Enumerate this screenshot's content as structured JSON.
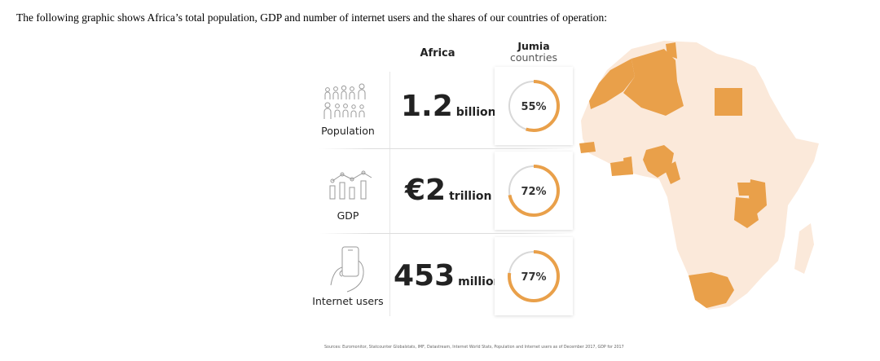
{
  "intro_text": "The following graphic shows Africa’s total population, GDP and number of internet users and the shares of our countries of operation:",
  "columns": {
    "africa": "Africa",
    "jumia_title": "Jumia",
    "jumia_subtitle": "countries"
  },
  "rows": [
    {
      "label": "Population",
      "icon": "people-icon",
      "value": "1.2",
      "unit": "billion",
      "share_pct": 55,
      "share_label": "55%"
    },
    {
      "label": "GDP",
      "icon": "growth-chart-icon",
      "value": "€2",
      "unit": "trillion",
      "share_pct": 72,
      "share_label": "72%"
    },
    {
      "label": "Internet users",
      "icon": "smartphone-hand-icon",
      "value": "453",
      "unit": "million",
      "share_pct": 77,
      "share_label": "77%"
    }
  ],
  "sources": "Sources: Euromonitor, Statcounter Globalstats, IMF, Datastream, Internet World Stats, Population and Internet users as of December 2017, GDP for 2017",
  "colors": {
    "accent": "#E9A04A",
    "map_base": "#FBE9DA",
    "gauge_track": "#D8D8D8"
  }
}
